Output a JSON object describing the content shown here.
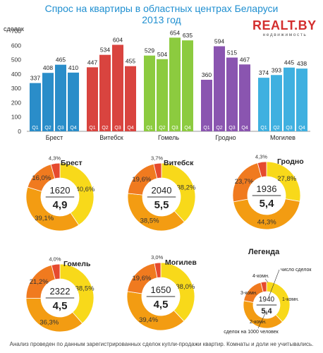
{
  "title": "Спрос на квартиры в областных центрах Беларуси",
  "subtitle": "2013 год",
  "logo": {
    "brand": "REALT.BY",
    "tagline": "недвижимость"
  },
  "colors": {
    "title": "#1f8fd0",
    "cities": {
      "Брест": "#2a8dc9",
      "Витебск": "#d9443f",
      "Гомель": "#8ccb3f",
      "Гродно": "#8a55b0",
      "Могилев": "#3fb0e0"
    },
    "donut": {
      "1-комн.": "#f8d91a",
      "2-комн.": "#f39c12",
      "3-комн.": "#f07a1f",
      "4-комн.": "#e64a2e"
    }
  },
  "chart_data": [
    {
      "type": "bar",
      "ylabel": "сделок",
      "ylim": [
        0,
        700
      ],
      "yticks": [
        0,
        100,
        200,
        300,
        400,
        500,
        600,
        700
      ],
      "groups": [
        "Брест",
        "Витебск",
        "Гомель",
        "Гродно",
        "Могилев"
      ],
      "quarters": [
        "Q1",
        "Q2",
        "Q3",
        "Q4"
      ],
      "series": [
        {
          "name": "Брест",
          "values": [
            337,
            408,
            465,
            410
          ]
        },
        {
          "name": "Витебск",
          "values": [
            447,
            534,
            604,
            455
          ]
        },
        {
          "name": "Гомель",
          "values": [
            529,
            504,
            654,
            635
          ]
        },
        {
          "name": "Гродно",
          "values": [
            360,
            594,
            515,
            467
          ]
        },
        {
          "name": "Могилев",
          "values": [
            374,
            393,
            445,
            438
          ]
        }
      ],
      "grid": false
    },
    {
      "type": "pie",
      "donuts": [
        {
          "city": "Брест",
          "deals": "1620",
          "per1000": "4,9",
          "slices": [
            40.6,
            39.1,
            16.0,
            4.3
          ],
          "labels": [
            "40,6%",
            "39,1%",
            "16,0%",
            "4,3%"
          ]
        },
        {
          "city": "Витебск",
          "deals": "2040",
          "per1000": "5,5",
          "slices": [
            38.2,
            38.5,
            19.6,
            3.7
          ],
          "labels": [
            "38,2%",
            "38,5%",
            "19,6%",
            "3,7%"
          ]
        },
        {
          "city": "Гродно",
          "deals": "1936",
          "per1000": "5,4",
          "slices": [
            27.8,
            44.3,
            23.7,
            4.3
          ],
          "labels": [
            "27,8%",
            "44,3%",
            "23,7%",
            "4,3%"
          ]
        },
        {
          "city": "Гомель",
          "deals": "2322",
          "per1000": "4,5",
          "slices": [
            38.5,
            36.3,
            21.2,
            4.0
          ],
          "labels": [
            "38,5%",
            "36,3%",
            "21,2%",
            "4,0%"
          ]
        },
        {
          "city": "Могилев",
          "deals": "1650",
          "per1000": "4,5",
          "slices": [
            38.0,
            39.4,
            19.6,
            3.0
          ],
          "labels": [
            "38,0%",
            "39,4%",
            "19,6%",
            "3,0%"
          ]
        }
      ],
      "legend": {
        "title": "Легенда",
        "deals": "1940",
        "per1000": "5,4",
        "slices": [
          38,
          40,
          18,
          4
        ],
        "notes": {
          "deals": "число сделок",
          "per1000": "сделок на 1000 человек",
          "room1": "1-комн.",
          "room2": "2-комн.",
          "room3": "3-комн.",
          "room4": "4-комн."
        }
      }
    }
  ],
  "footnote": "Анализ проведен по данным зарегистрированных сделок купли-продажи квартир. Комнаты и доли не учитывались."
}
